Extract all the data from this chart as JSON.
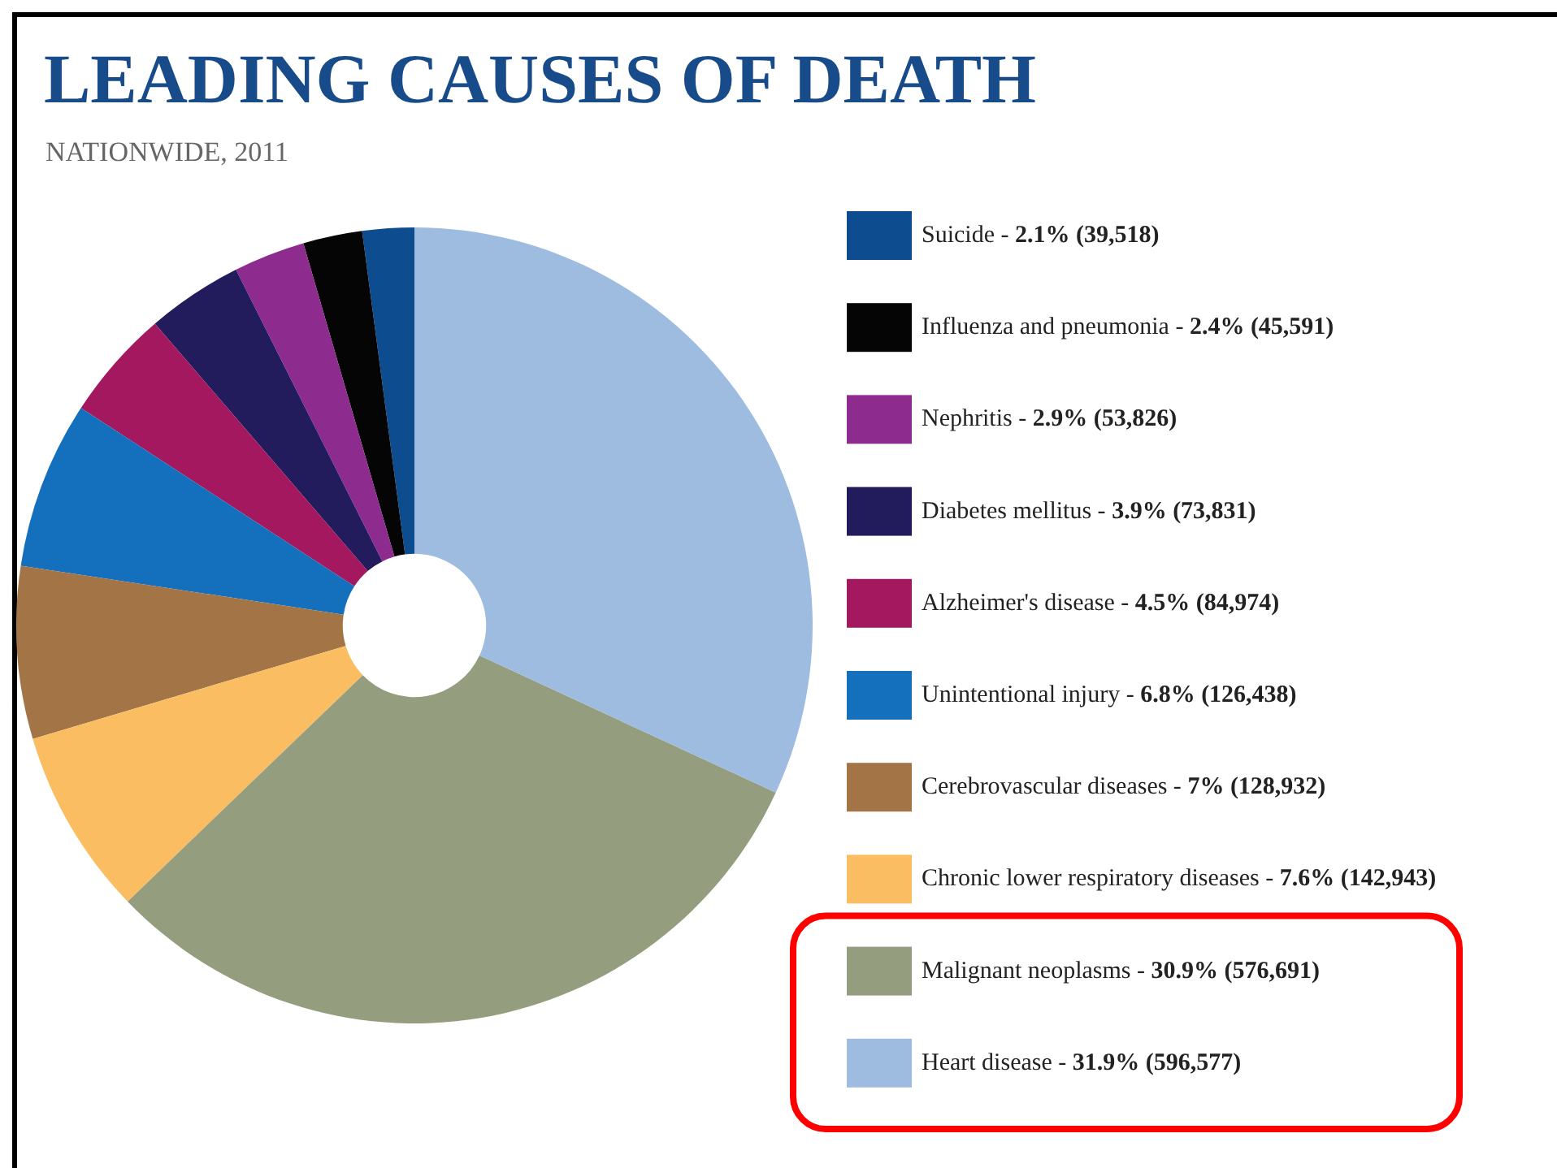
{
  "chart_data": {
    "type": "donut",
    "title": "LEADING CAUSES OF DEATH",
    "subtitle": "NATIONWIDE, 2011",
    "categories": [
      "Suicide - 2.1% (39,518)",
      "Influenza and pneumonia - 2.4% (45,591)",
      "Nephritis - 2.9% (53,826)",
      "Diabetes mellitus - 3.9% (73,831)",
      "Alzheimer's disease - 4.5% (84,974)",
      "Unintentional injury - 6.8% (126,438)",
      "Cerebrovascular diseases - 7% (128,932)",
      "Chronic lower respiratory diseases - 7.6% (142,943)",
      "Malignant neoplasms - 30.9% (576,691)",
      "Heart disease - 31.9% (596,577)"
    ],
    "values": [
      2.1,
      2.4,
      2.9,
      3.9,
      4.5,
      6.8,
      7,
      7.6,
      30.9,
      31.9
    ],
    "colors": [
      "#0d4d8f",
      "#050505",
      "#8e2b8e",
      "#221c5c",
      "#a3185f",
      "#1470bd",
      "#a27446",
      "#fbbd62",
      "#959d7f",
      "#9dbce0"
    ],
    "legend": "right"
  }
}
